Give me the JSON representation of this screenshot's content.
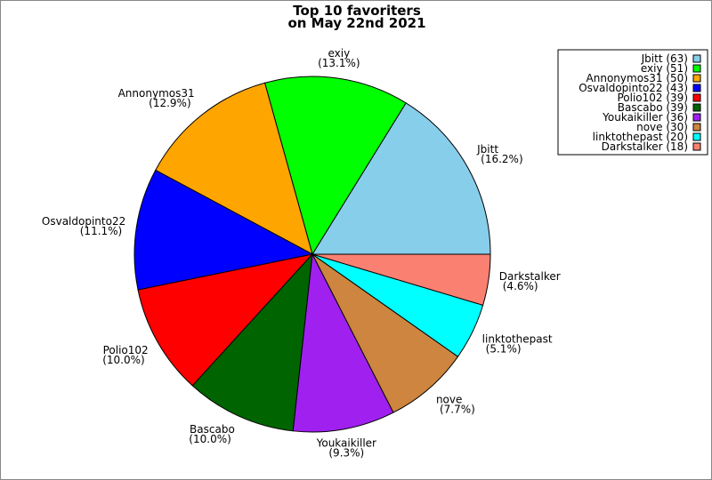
{
  "chart_data": {
    "type": "pie",
    "title": [
      "Top 10 favoriters",
      "on May 22nd 2021"
    ],
    "start_angle_deg": 0,
    "direction": "counterclockwise",
    "legend_position": "top-right",
    "slices": [
      {
        "name": "Jbitt",
        "value": 63,
        "percent": "16.2%",
        "color": "#87CEEB"
      },
      {
        "name": "exiy",
        "value": 51,
        "percent": "13.1%",
        "color": "#00FF00"
      },
      {
        "name": "Annonymos31",
        "value": 50,
        "percent": "12.9%",
        "color": "#FFA500"
      },
      {
        "name": "Osvaldopinto22",
        "value": 43,
        "percent": "11.1%",
        "color": "#0000FF"
      },
      {
        "name": "Polio102",
        "value": 39,
        "percent": "10.0%",
        "color": "#FF0000"
      },
      {
        "name": "Bascabo",
        "value": 39,
        "percent": "10.0%",
        "color": "#006400"
      },
      {
        "name": "Youkaikiller",
        "value": 36,
        "percent": "9.3%",
        "color": "#A020F0"
      },
      {
        "name": "nove",
        "value": 30,
        "percent": "7.7%",
        "color": "#CD853F"
      },
      {
        "name": "linktothepast",
        "value": 20,
        "percent": "5.1%",
        "color": "#00FFFF"
      },
      {
        "name": "Darkstalker",
        "value": 18,
        "percent": "4.6%",
        "color": "#FA8072"
      }
    ]
  }
}
